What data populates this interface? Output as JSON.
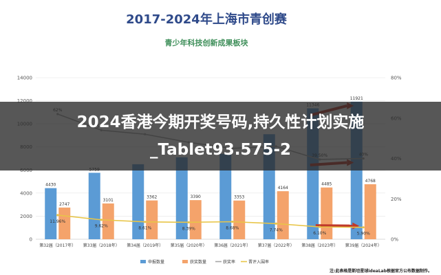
{
  "page": {
    "title": "2017-2024年上海市青创赛",
    "subtitle": "青少年科技创新成果板块",
    "source": "注:此表格是斯坦星球ideaLab根据官方公布数据制作。",
    "banner_line1": "2024香港今期开奖号码,持久性计划实施",
    "banner_line2": "_Tablet93.575-2"
  },
  "chart_data": {
    "type": "bar",
    "categories": [
      "第32届（2017年）",
      "第33届（2018年）",
      "第34届（2019年）",
      "第35届（2020年）",
      "第36届（2021年）",
      "第37届（2022年）",
      "第38届（2023年）",
      "第39届（2024年）"
    ],
    "series": [
      {
        "name": "申报数量",
        "kind": "bar",
        "axis": "left",
        "color": "#5b9bd5",
        "values": [
          4430,
          5759,
          6500,
          7100,
          7400,
          9100,
          11346,
          11921
        ],
        "labels": [
          "4430",
          "5759",
          "",
          "",
          "",
          "",
          "11346",
          "11921"
        ]
      },
      {
        "name": "获奖数量",
        "kind": "bar",
        "axis": "left",
        "color": "#f4a36b",
        "values": [
          2747,
          3101,
          3362,
          3390,
          3353,
          4164,
          4485,
          4768
        ],
        "labels": [
          "2747",
          "3101",
          "3362",
          "3390",
          "3353",
          "4164",
          "4485",
          "4768"
        ]
      },
      {
        "name": "获奖率",
        "kind": "line",
        "axis": "right",
        "color": "#a6a6a6",
        "values": [
          62,
          54,
          52,
          48,
          45,
          46,
          39.5,
          40
        ],
        "labels": [
          "62%",
          "54%",
          "",
          "",
          "",
          "",
          "39.50%",
          "40%"
        ]
      },
      {
        "name": "晋评入围率",
        "kind": "line",
        "axis": "right",
        "color": "#e8c547",
        "values": [
          11.96,
          9.62,
          8.61,
          8.39,
          8.68,
          7.74,
          6.1,
          5.9
        ],
        "labels": [
          "11.96%",
          "9.62%",
          "8.61%",
          "8.39%",
          "8.68%",
          "7.74%",
          "6.10%",
          "5.90%"
        ]
      }
    ],
    "ylim_left": [
      0,
      14000
    ],
    "yticks_left": [
      "0",
      "2000",
      "4000",
      "6000",
      "8000",
      "10000",
      "12000",
      "14000"
    ],
    "ylim_right": [
      0,
      80
    ],
    "yticks_right": [
      "0%",
      "20%",
      "40%",
      "60%",
      "80%"
    ],
    "legend_position": "bottom",
    "grid": true
  }
}
